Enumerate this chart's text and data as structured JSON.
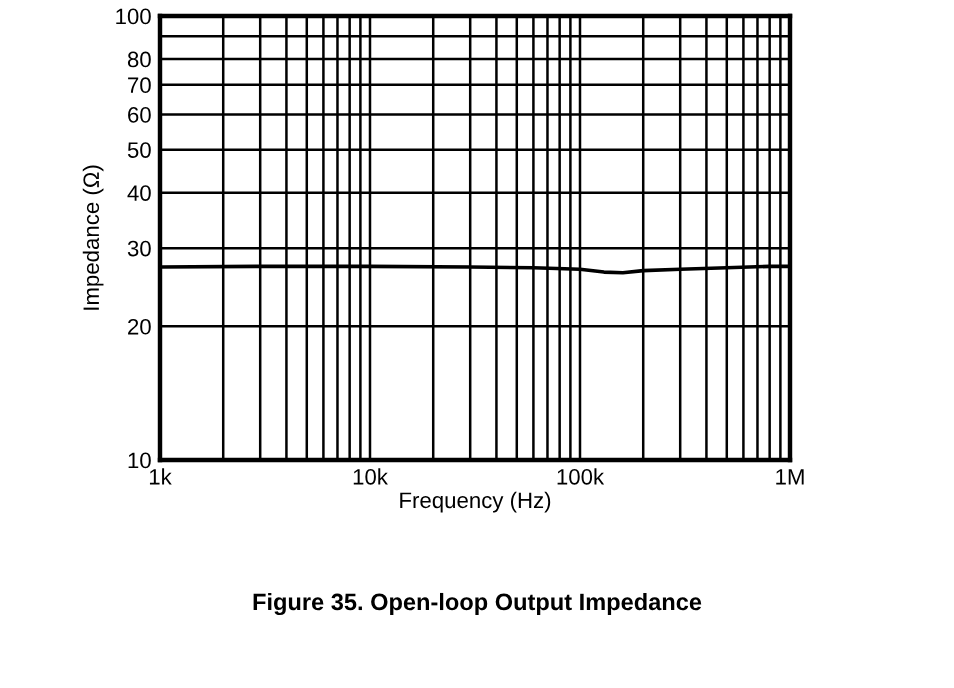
{
  "chart_data": {
    "type": "line",
    "xlabel": "Frequency (Hz)",
    "ylabel": "Impedance (Ω)",
    "log": "xy",
    "grid": true,
    "marker": "none",
    "line_style": "solid",
    "annotations": [
      "Figure 35. Open-loop Output Impedance"
    ],
    "xlim": [
      1000,
      1000000
    ],
    "ylim": [
      10,
      100
    ],
    "xticks": [
      {
        "value": 1000,
        "label": "1k"
      },
      {
        "value": 2000,
        "label": null
      },
      {
        "value": 3000,
        "label": null
      },
      {
        "value": 4000,
        "label": null
      },
      {
        "value": 5000,
        "label": null
      },
      {
        "value": 6000,
        "label": null
      },
      {
        "value": 7000,
        "label": null
      },
      {
        "value": 8000,
        "label": null
      },
      {
        "value": 9000,
        "label": null
      },
      {
        "value": 10000,
        "label": "10k"
      },
      {
        "value": 20000,
        "label": null
      },
      {
        "value": 30000,
        "label": null
      },
      {
        "value": 40000,
        "label": null
      },
      {
        "value": 50000,
        "label": null
      },
      {
        "value": 60000,
        "label": null
      },
      {
        "value": 70000,
        "label": null
      },
      {
        "value": 80000,
        "label": null
      },
      {
        "value": 90000,
        "label": null
      },
      {
        "value": 100000,
        "label": "100k"
      },
      {
        "value": 200000,
        "label": null
      },
      {
        "value": 300000,
        "label": null
      },
      {
        "value": 400000,
        "label": null
      },
      {
        "value": 500000,
        "label": null
      },
      {
        "value": 600000,
        "label": null
      },
      {
        "value": 700000,
        "label": null
      },
      {
        "value": 800000,
        "label": null
      },
      {
        "value": 900000,
        "label": null
      },
      {
        "value": 1000000,
        "label": "1M"
      }
    ],
    "yticks": [
      10,
      20,
      30,
      40,
      50,
      60,
      70,
      80,
      {
        "value": 90,
        "label": null
      },
      100
    ],
    "series": [
      {
        "color": "#000000",
        "x": [
          1000,
          3000,
          10000,
          30000,
          60000,
          100000,
          130000,
          160000,
          200000,
          300000,
          500000,
          800000,
          1000000
        ],
        "values": [
          27.2,
          27.3,
          27.3,
          27.2,
          27.1,
          26.9,
          26.5,
          26.4,
          26.7,
          26.9,
          27.1,
          27.3,
          27.3
        ]
      }
    ]
  }
}
